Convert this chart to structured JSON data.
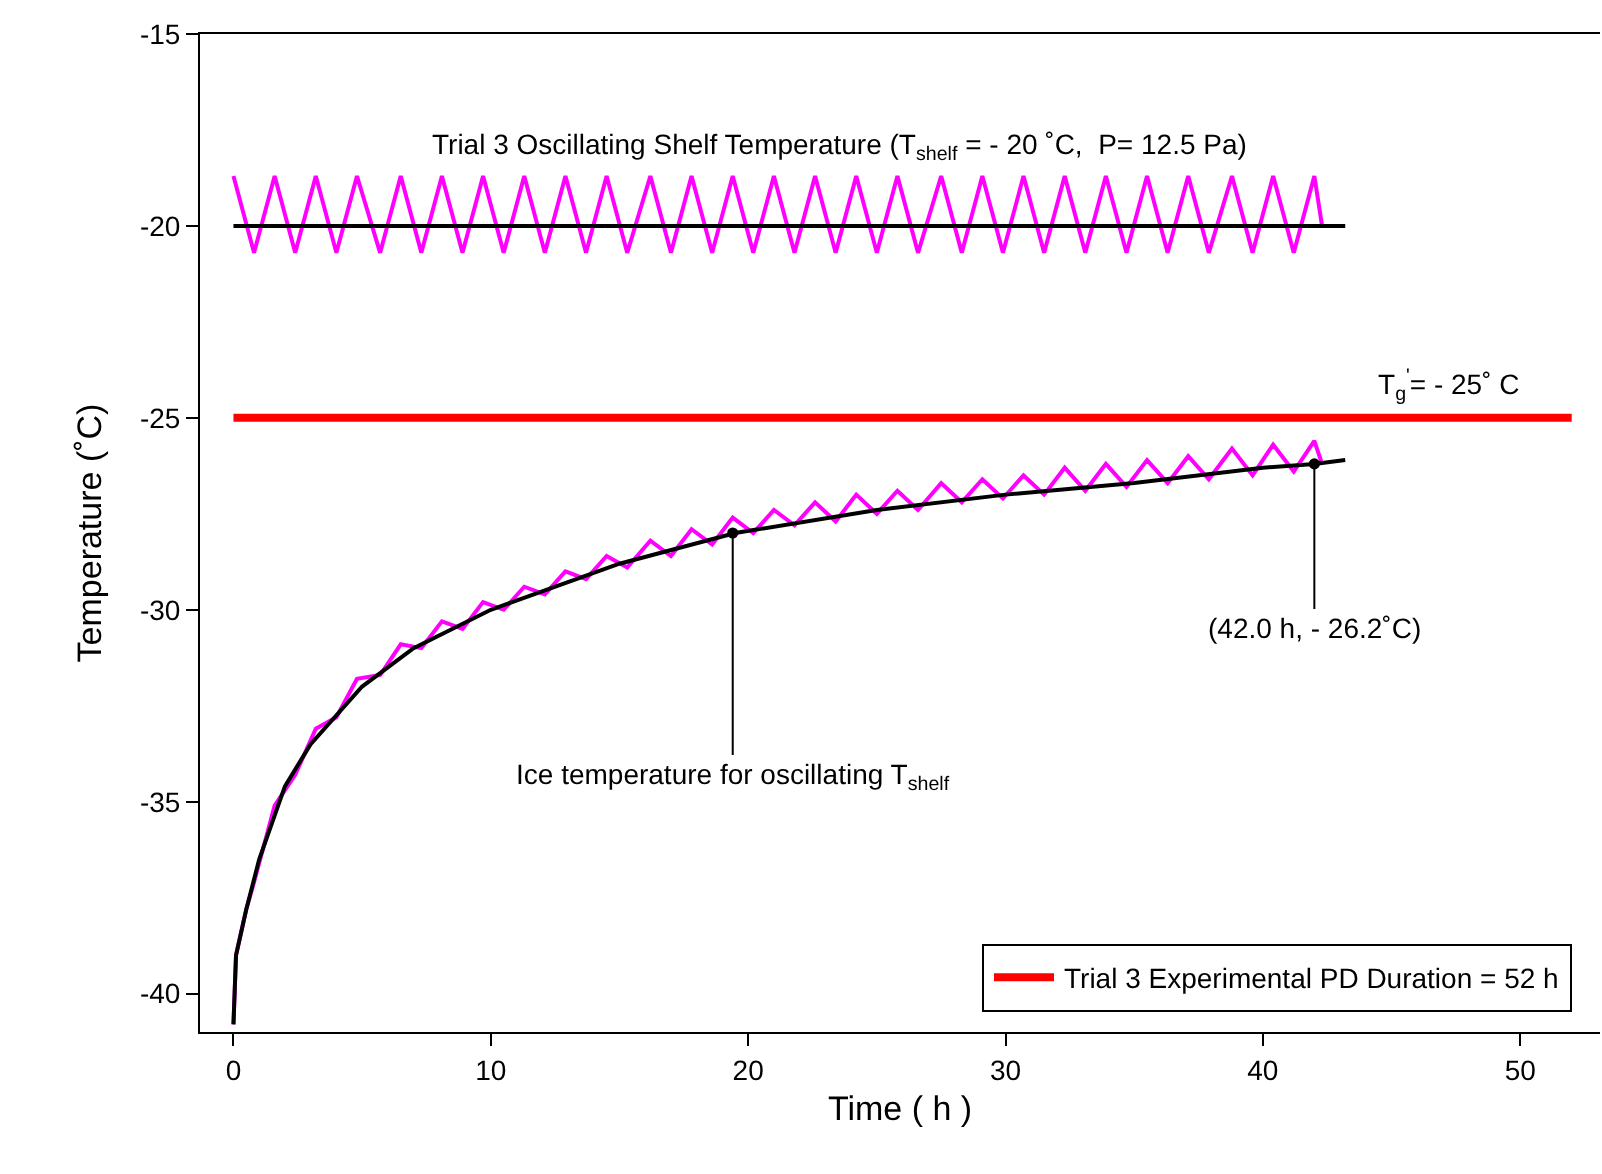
{
  "chart_data": {
    "type": "line",
    "xlabel": "Time ( h )",
    "ylabel": "Temperature (˚C)",
    "xlim": [
      -1.3,
      53.1
    ],
    "xticks": [
      0,
      10,
      20,
      30,
      40,
      50
    ],
    "ylim": [
      -41,
      -15
    ],
    "yticks": [
      -40,
      -35,
      -30,
      -25,
      -20,
      -15
    ],
    "grid": false,
    "legend": "bottom right",
    "marker": "none",
    "line_style": "solid",
    "series": [
      {
        "color": "#ff00ff",
        "x": [
          0,
          0.8,
          1.6,
          2.4,
          3.2,
          4.0,
          4.8,
          5.7,
          6.5,
          7.3,
          8.1,
          8.9,
          9.7,
          10.5,
          11.3,
          12.1,
          12.9,
          13.7,
          14.5,
          15.3,
          16.2,
          17.0,
          17.8,
          18.6,
          19.4,
          20.2,
          21.0,
          21.8,
          22.6,
          23.4,
          24.2,
          25.0,
          25.8,
          26.6,
          27.5,
          28.3,
          29.1,
          29.9,
          30.7,
          31.5,
          32.3,
          33.1,
          33.9,
          34.7,
          35.5,
          36.3,
          37.1,
          37.9,
          38.8,
          39.6,
          40.4,
          41.2,
          42.0,
          42.3
        ],
        "values": [
          -18.7,
          -20.7,
          -18.7,
          -20.7,
          -18.7,
          -20.7,
          -18.7,
          -20.7,
          -18.7,
          -20.7,
          -18.7,
          -20.7,
          -18.7,
          -20.7,
          -18.7,
          -20.7,
          -18.7,
          -20.7,
          -18.7,
          -20.7,
          -18.7,
          -20.7,
          -18.7,
          -20.7,
          -18.7,
          -20.7,
          -18.7,
          -20.7,
          -18.7,
          -20.7,
          -18.7,
          -20.7,
          -18.7,
          -20.7,
          -18.7,
          -20.7,
          -18.7,
          -20.7,
          -18.7,
          -20.7,
          -18.7,
          -20.7,
          -18.7,
          -20.7,
          -18.7,
          -20.7,
          -18.7,
          -20.7,
          -18.7,
          -20.7,
          -18.7,
          -20.7,
          -18.7,
          -20.0
        ]
      },
      {
        "color": "#000000",
        "x": [
          0,
          43.2
        ],
        "values": [
          -20,
          -20
        ]
      },
      {
        "name": "Trial 3 Experimental PD Duration = 52 h",
        "color": "#ff0000",
        "x": [
          0,
          52
        ],
        "values": [
          -25,
          -25
        ]
      },
      {
        "color": "#ff00ff",
        "x": [
          0,
          0.1,
          0.5,
          0.8,
          1.6,
          2.4,
          3.2,
          4.0,
          4.8,
          5.7,
          6.5,
          7.3,
          8.1,
          8.9,
          9.7,
          10.5,
          11.3,
          12.1,
          12.9,
          13.7,
          14.5,
          15.3,
          16.2,
          17.0,
          17.8,
          18.6,
          19.4,
          20.2,
          21.0,
          21.8,
          22.6,
          23.4,
          24.2,
          25.0,
          25.8,
          26.6,
          27.5,
          28.3,
          29.1,
          29.9,
          30.7,
          31.5,
          32.3,
          33.1,
          33.9,
          34.7,
          35.5,
          36.3,
          37.1,
          37.9,
          38.8,
          39.6,
          40.4,
          41.2,
          42.0,
          42.3
        ],
        "values": [
          -40.8,
          -39.0,
          -37.8,
          -37.1,
          -35.1,
          -34.3,
          -33.1,
          -32.8,
          -31.8,
          -31.7,
          -30.9,
          -31.0,
          -30.3,
          -30.5,
          -29.8,
          -30.0,
          -29.4,
          -29.6,
          -29.0,
          -29.2,
          -28.6,
          -28.9,
          -28.2,
          -28.6,
          -27.9,
          -28.3,
          -27.6,
          -28.0,
          -27.4,
          -27.8,
          -27.2,
          -27.7,
          -27.0,
          -27.5,
          -26.9,
          -27.4,
          -26.7,
          -27.2,
          -26.6,
          -27.1,
          -26.5,
          -27.0,
          -26.3,
          -26.9,
          -26.2,
          -26.8,
          -26.1,
          -26.7,
          -26.0,
          -26.6,
          -25.8,
          -26.5,
          -25.7,
          -26.4,
          -25.6,
          -26.2
        ]
      },
      {
        "color": "#000000",
        "x": [
          0,
          0.1,
          0.5,
          1,
          2,
          3,
          5,
          7,
          10,
          15,
          19.5,
          25,
          30,
          35,
          40,
          42,
          43.2
        ],
        "values": [
          -40.8,
          -39.0,
          -37.8,
          -36.5,
          -34.6,
          -33.5,
          -32.0,
          -31.0,
          -30.0,
          -28.8,
          -28.0,
          -27.4,
          -27.0,
          -26.7,
          -26.3,
          -26.2,
          -26.1
        ]
      }
    ],
    "annotations": [
      "Trial 3 Oscillating Shelf Temperature (T$_{shelf}$ = - 20 ˚C,  P= 12.5 Pa)",
      {
        "text": "T$_{g}$$^{'}$= - 25˚ C",
        "x": 47.2,
        "y": -25
      },
      {
        "text": "Ice temperature for oscillating T$_{shelf}$",
        "x": 19.4,
        "y": -28.0
      },
      {
        "text": "(42.0 h, - 26.2˚C)",
        "x": 42.0,
        "y": -26.2
      }
    ]
  }
}
